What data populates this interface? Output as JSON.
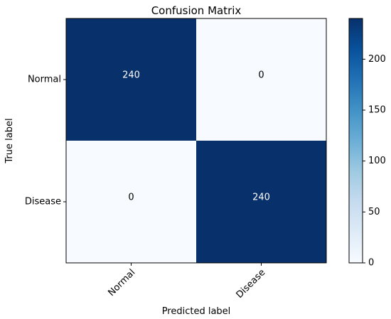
{
  "chart_data": {
    "type": "heatmap",
    "title": "Confusion Matrix",
    "xlabel": "Predicted label",
    "ylabel": "True label",
    "x_categories": [
      "Normal",
      "Disease"
    ],
    "y_categories": [
      "Normal",
      "Disease"
    ],
    "values": [
      [
        240,
        0
      ],
      [
        0,
        240
      ]
    ],
    "colorbar": {
      "range": [
        0,
        240
      ],
      "ticks": [
        0,
        50,
        100,
        150,
        200
      ],
      "tick_labels": [
        "0",
        "50",
        "100",
        "150",
        "200"
      ],
      "colormap": "Blues",
      "colors": [
        "#f7fbff",
        "#deebf7",
        "#c6dbef",
        "#9ecae1",
        "#6baed6",
        "#4292c6",
        "#2171b5",
        "#08519c",
        "#08306b"
      ]
    },
    "cell_text_colors": {
      "dark": "#ffffff",
      "light": "#000000"
    }
  }
}
